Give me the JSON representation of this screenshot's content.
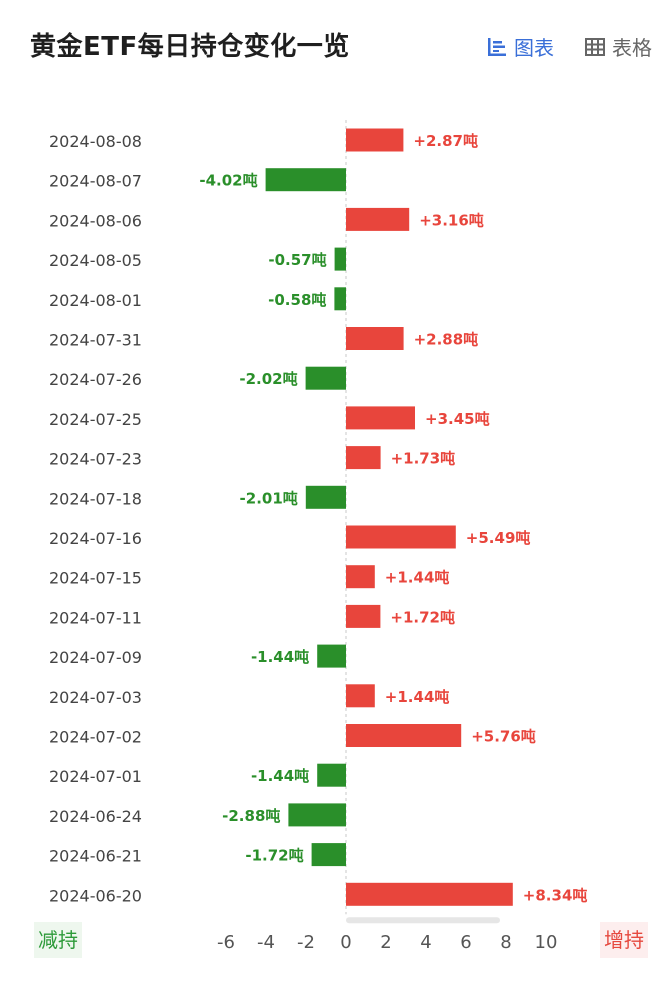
{
  "title": "黄金ETF每日持仓变化一览",
  "toggle": {
    "chart_label": "图表",
    "table_label": "表格"
  },
  "icons": {
    "chart": "bar-chart-icon",
    "table": "table-grid-icon"
  },
  "legend": {
    "reduce_label": "减持",
    "increase_label": "增持"
  },
  "colors": {
    "positive": "#e8453c",
    "negative": "#2a8f2a",
    "accent": "#3a6fd8"
  },
  "chart_data": {
    "type": "bar",
    "orientation": "horizontal",
    "title": "黄金ETF每日持仓变化一览",
    "unit": "吨",
    "categories": [
      "2024-08-08",
      "2024-08-07",
      "2024-08-06",
      "2024-08-05",
      "2024-08-01",
      "2024-07-31",
      "2024-07-26",
      "2024-07-25",
      "2024-07-23",
      "2024-07-18",
      "2024-07-16",
      "2024-07-15",
      "2024-07-11",
      "2024-07-09",
      "2024-07-03",
      "2024-07-02",
      "2024-07-01",
      "2024-06-24",
      "2024-06-21",
      "2024-06-20"
    ],
    "values": [
      2.87,
      -4.02,
      3.16,
      -0.57,
      -0.58,
      2.88,
      -2.02,
      3.45,
      1.73,
      -2.01,
      5.49,
      1.44,
      1.72,
      -1.44,
      1.44,
      5.76,
      -1.44,
      -2.88,
      -1.72,
      8.34
    ],
    "labels": [
      "+2.87吨",
      "-4.02吨",
      "+3.16吨",
      "-0.57吨",
      "-0.58吨",
      "+2.88吨",
      "-2.02吨",
      "+3.45吨",
      "+1.73吨",
      "-2.01吨",
      "+5.49吨",
      "+1.44吨",
      "+1.72吨",
      "-1.44吨",
      "+1.44吨",
      "+5.76吨",
      "-1.44吨",
      "-2.88吨",
      "-1.72吨",
      "+8.34吨"
    ],
    "xlim": [
      -6,
      10
    ],
    "xticks": [
      "-6",
      "-4",
      "-2",
      "0",
      "2",
      "4",
      "6",
      "8",
      "10"
    ],
    "grid": false,
    "legend": "none"
  }
}
